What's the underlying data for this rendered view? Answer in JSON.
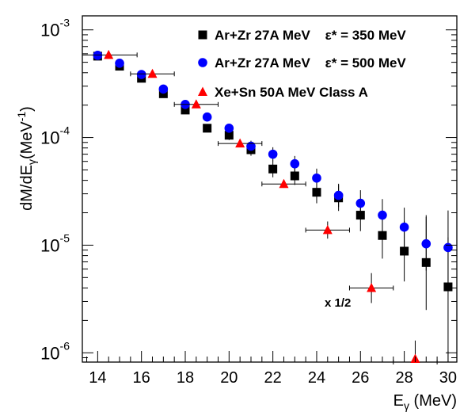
{
  "chart_data": {
    "type": "scatter",
    "xlabel": "E",
    "xlabel_sub": "γ",
    "xlabel_unit": " (MeV)",
    "ylabel_parts": [
      "dM/dE",
      "γ",
      "(MeV",
      "-1",
      ")"
    ],
    "xlim": [
      13.3,
      30.4
    ],
    "ylim": [
      8.2e-07,
      0.00135
    ],
    "log_y": true,
    "x_ticks": [
      14,
      16,
      18,
      20,
      22,
      24,
      26,
      28,
      30
    ],
    "y_ticks": [
      {
        "value": 0.001,
        "base": "10",
        "exp": "-3"
      },
      {
        "value": 0.0001,
        "base": "10",
        "exp": "-4"
      },
      {
        "value": 1e-05,
        "base": "10",
        "exp": "-5"
      },
      {
        "value": 1e-06,
        "base": "10",
        "exp": "-6"
      }
    ],
    "grid": false,
    "legend_position": "top-right",
    "annotation": "x 1/2",
    "series": [
      {
        "name": "Ar+Zr 27A MeV    ε* = 350 MeV",
        "marker": "square",
        "color": "#000000",
        "points": [
          {
            "x": 14,
            "y": 0.00057,
            "lo": 0.000548,
            "hi": 0.000598
          },
          {
            "x": 15,
            "y": 0.00046,
            "lo": 0.00044,
            "hi": 0.00048
          },
          {
            "x": 16,
            "y": 0.000355,
            "lo": 0.000339,
            "hi": 0.000372
          },
          {
            "x": 17,
            "y": 0.000255,
            "lo": 0.000243,
            "hi": 0.000268
          },
          {
            "x": 18,
            "y": 0.00018,
            "lo": 0.000168,
            "hi": 0.000193
          },
          {
            "x": 19,
            "y": 0.000122,
            "lo": 0.000112,
            "hi": 0.000132
          },
          {
            "x": 20,
            "y": 0.000105,
            "lo": 9.48e-05,
            "hi": 0.000117
          },
          {
            "x": 21,
            "y": 7.7e-05,
            "lo": 6.77e-05,
            "hi": 8.73e-05
          },
          {
            "x": 22,
            "y": 5.1e-05,
            "lo": 4.27e-05,
            "hi": 6.12e-05
          },
          {
            "x": 23,
            "y": 4.4e-05,
            "lo": 3.63e-05,
            "hi": 5.42e-05
          },
          {
            "x": 24,
            "y": 3.1e-05,
            "lo": 2.45e-05,
            "hi": 3.93e-05
          },
          {
            "x": 25,
            "y": 2.75e-05,
            "lo": 2.08e-05,
            "hi": 3.63e-05
          },
          {
            "x": 26,
            "y": 1.9e-05,
            "lo": 1.35e-05,
            "hi": 2.67e-05
          },
          {
            "x": 27,
            "y": 1.23e-05,
            "lo": 7.5e-06,
            "hi": 2.02e-05
          },
          {
            "x": 28,
            "y": 8.8e-06,
            "lo": 4.6e-06,
            "hi": 1.68e-05
          },
          {
            "x": 29,
            "y": 6.9e-06,
            "lo": 2.5e-06,
            "hi": 1.9e-05
          },
          {
            "x": 30,
            "y": 4.1e-06,
            "lo": 8.2e-07,
            "hi": 1.18e-05
          }
        ]
      },
      {
        "name": "Ar+Zr 27A MeV    ε* = 500 MeV",
        "marker": "circle",
        "color": "#0000ff",
        "points": [
          {
            "x": 14,
            "y": 0.00058,
            "lo": 0.000558,
            "hi": 0.000608
          },
          {
            "x": 15,
            "y": 0.00049,
            "lo": 0.00047,
            "hi": 0.00051
          },
          {
            "x": 16,
            "y": 0.000385,
            "lo": 0.000368,
            "hi": 0.000402
          },
          {
            "x": 17,
            "y": 0.000282,
            "lo": 0.000268,
            "hi": 0.000296
          },
          {
            "x": 18,
            "y": 0.000203,
            "lo": 0.000191,
            "hi": 0.000216
          },
          {
            "x": 19,
            "y": 0.000155,
            "lo": 0.000144,
            "hi": 0.000167
          },
          {
            "x": 20,
            "y": 0.000122,
            "lo": 0.000111,
            "hi": 0.000134
          },
          {
            "x": 21,
            "y": 8.3e-05,
            "lo": 7.37e-05,
            "hi": 9.34e-05
          },
          {
            "x": 22,
            "y": 7e-05,
            "lo": 6.03e-05,
            "hi": 8.12e-05
          },
          {
            "x": 23,
            "y": 5.7e-05,
            "lo": 4.82e-05,
            "hi": 6.74e-05
          },
          {
            "x": 24,
            "y": 4.2e-05,
            "lo": 3.43e-05,
            "hi": 5.14e-05
          },
          {
            "x": 25,
            "y": 2.9e-05,
            "lo": 2.26e-05,
            "hi": 3.72e-05
          },
          {
            "x": 26,
            "y": 2.45e-05,
            "lo": 1.85e-05,
            "hi": 3.24e-05
          },
          {
            "x": 27,
            "y": 1.9e-05,
            "lo": 1.35e-05,
            "hi": 2.68e-05
          },
          {
            "x": 28,
            "y": 1.47e-05,
            "lo": 9.7e-06,
            "hi": 2.23e-05
          },
          {
            "x": 29,
            "y": 1.03e-05,
            "lo": 5.8e-06,
            "hi": 1.83e-05
          },
          {
            "x": 30,
            "y": 9.5e-06,
            "lo": 4.3e-06,
            "hi": 2.1e-05
          }
        ]
      },
      {
        "name": "Xe+Sn 50A MeV Class A",
        "marker": "triangle",
        "color": "#ff0000",
        "points": [
          {
            "x": 14.5,
            "y": 0.000585,
            "lo": 0.000556,
            "hi": 0.000615,
            "xlo": 13.2,
            "xhi": 15.8
          },
          {
            "x": 16.5,
            "y": 0.00039,
            "lo": 0.00037,
            "hi": 0.000411,
            "xlo": 15.5,
            "xhi": 17.5
          },
          {
            "x": 18.5,
            "y": 0.000203,
            "lo": 0.000191,
            "hi": 0.000216,
            "xlo": 17.5,
            "xhi": 19.5
          },
          {
            "x": 20.5,
            "y": 8.8e-05,
            "lo": 8.22e-05,
            "hi": 9.42e-05,
            "xlo": 19.5,
            "xhi": 21.5
          },
          {
            "x": 22.5,
            "y": 3.7e-05,
            "lo": 3.41e-05,
            "hi": 4.02e-05,
            "xlo": 21.5,
            "xhi": 23.5
          },
          {
            "x": 24.5,
            "y": 1.38e-05,
            "lo": 1.15e-05,
            "hi": 1.66e-05,
            "xlo": 23.5,
            "xhi": 25.5
          },
          {
            "x": 26.5,
            "y": 4e-06,
            "lo": 2.9e-06,
            "hi": 5.5e-06,
            "xlo": 25.5,
            "xhi": 27.5
          },
          {
            "x": 28.5,
            "y": 8.2e-07,
            "lo": 8.2e-07,
            "hi": 1.3e-06,
            "xlo": 27.5,
            "xhi": 29.5
          }
        ]
      }
    ]
  }
}
